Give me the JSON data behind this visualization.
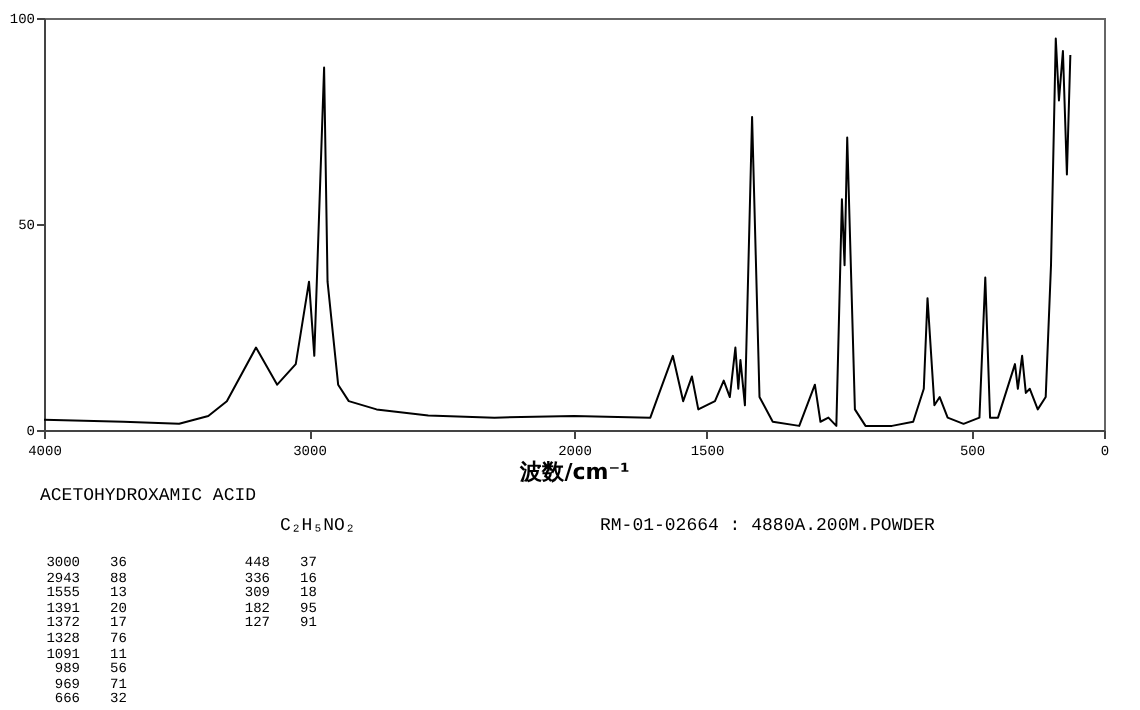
{
  "chart_data": {
    "type": "line",
    "title": "ACETOHYDROXAMIC ACID",
    "xlabel": "波数/cm⁻¹",
    "annotations": [
      "C₂H₅NO₂",
      "RM-01-02664 : 4880A.200M.POWDER",
      "3000 36",
      "2943 88",
      "1555 13",
      "1391 20",
      "1372 17",
      "1328 76",
      "1091 11",
      "989 56",
      "969 71",
      "666 32",
      "448 37",
      "336 16",
      "309 18",
      "182 95",
      "127 91"
    ],
    "x": [
      4000,
      3700,
      3490,
      3380,
      3310,
      3200,
      3120,
      3050,
      3000,
      2980,
      2943,
      2930,
      2890,
      2850,
      2745,
      2550,
      2300,
      2000,
      1712,
      1684,
      1627,
      1588,
      1555,
      1531,
      1468,
      1435,
      1412,
      1391,
      1380,
      1372,
      1355,
      1328,
      1300,
      1250,
      1150,
      1091,
      1070,
      1040,
      1010,
      989,
      979,
      969,
      940,
      900,
      800,
      720,
      680,
      666,
      640,
      620,
      590,
      530,
      470,
      448,
      430,
      400,
      336,
      325,
      309,
      295,
      280,
      250,
      220,
      200,
      182,
      170,
      155,
      140,
      127
    ],
    "series": [
      {
        "color": "#000000",
        "values": [
          2.5,
          2,
          1.5,
          3.4,
          7,
          20,
          11,
          16,
          36,
          18,
          88,
          36,
          11,
          7,
          5,
          3.5,
          3,
          3.4,
          3,
          8,
          18,
          7,
          13,
          5,
          7,
          12,
          8,
          20,
          10,
          17,
          6,
          76,
          8,
          2,
          1,
          11,
          2,
          3,
          1,
          56,
          40,
          71,
          5,
          1,
          1,
          2,
          10,
          32,
          6,
          8,
          3,
          1.5,
          3,
          37,
          3,
          3,
          16,
          10,
          18,
          9,
          10,
          5,
          8,
          40,
          95,
          80,
          92,
          62,
          91
        ]
      }
    ],
    "xlim": [
      4000,
      0
    ],
    "xticks": [
      4000,
      3000,
      2000,
      1500,
      500,
      0
    ],
    "ylim": [
      0,
      100
    ],
    "yticks": [
      0,
      50,
      100
    ],
    "grid": false
  }
}
